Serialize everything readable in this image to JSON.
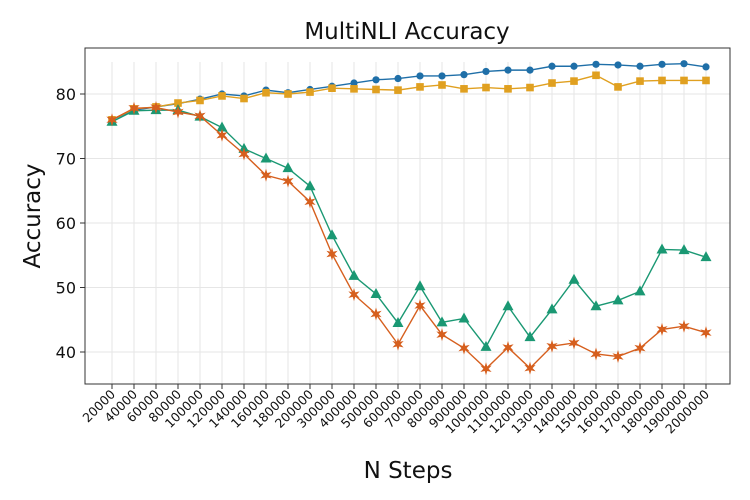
{
  "chart_data": {
    "type": "line",
    "title": "MultiNLI Accuracy",
    "xlabel": "N Steps",
    "ylabel": "Accuracy",
    "ylim": [
      35,
      85
    ],
    "yticks": [
      40,
      50,
      60,
      70,
      80
    ],
    "grid": true,
    "legend": "none",
    "categories": [
      "20000",
      "40000",
      "60000",
      "80000",
      "100000",
      "120000",
      "140000",
      "160000",
      "180000",
      "200000",
      "300000",
      "400000",
      "500000",
      "600000",
      "700000",
      "800000",
      "900000",
      "1000000",
      "1100000",
      "1200000",
      "1300000",
      "1400000",
      "1500000",
      "1600000",
      "1700000",
      "1800000",
      "1900000",
      "2000000"
    ],
    "series": [
      {
        "color": "#1f6fa8",
        "marker": "circle",
        "values": [
          76.0,
          77.5,
          78.0,
          78.5,
          79.2,
          80.0,
          79.7,
          80.6,
          80.2,
          80.7,
          81.2,
          81.7,
          82.2,
          82.4,
          82.8,
          82.8,
          83.0,
          83.5,
          83.7,
          83.7,
          84.3,
          84.3,
          84.6,
          84.5,
          84.3,
          84.6,
          84.7,
          84.2
        ]
      },
      {
        "color": "#e0a020",
        "marker": "square",
        "values": [
          76.0,
          77.7,
          78.0,
          78.6,
          79.0,
          79.7,
          79.3,
          80.2,
          80.0,
          80.3,
          80.9,
          80.8,
          80.7,
          80.6,
          81.1,
          81.4,
          80.8,
          81.0,
          80.8,
          81.0,
          81.7,
          82.0,
          82.9,
          81.1,
          82.0,
          82.1,
          82.1,
          82.1
        ]
      },
      {
        "color": "#1a9873",
        "marker": "triangle",
        "values": [
          75.7,
          77.4,
          77.5,
          77.5,
          76.5,
          74.8,
          71.5,
          70.0,
          68.5,
          65.7,
          58.1,
          51.8,
          49.0,
          44.5,
          50.2,
          44.6,
          45.2,
          40.8,
          47.1,
          42.3,
          46.6,
          51.2,
          47.1,
          48.0,
          49.4,
          55.9,
          55.8,
          54.7
        ]
      },
      {
        "color": "#d65f1e",
        "marker": "star",
        "values": [
          76.0,
          77.8,
          77.9,
          77.2,
          76.6,
          73.6,
          70.7,
          67.4,
          66.5,
          63.3,
          55.2,
          48.9,
          45.9,
          41.2,
          47.2,
          42.7,
          40.6,
          37.4,
          40.7,
          37.5,
          40.9,
          41.4,
          39.7,
          39.3,
          40.6,
          43.5,
          44.0,
          43.0
        ]
      }
    ]
  }
}
